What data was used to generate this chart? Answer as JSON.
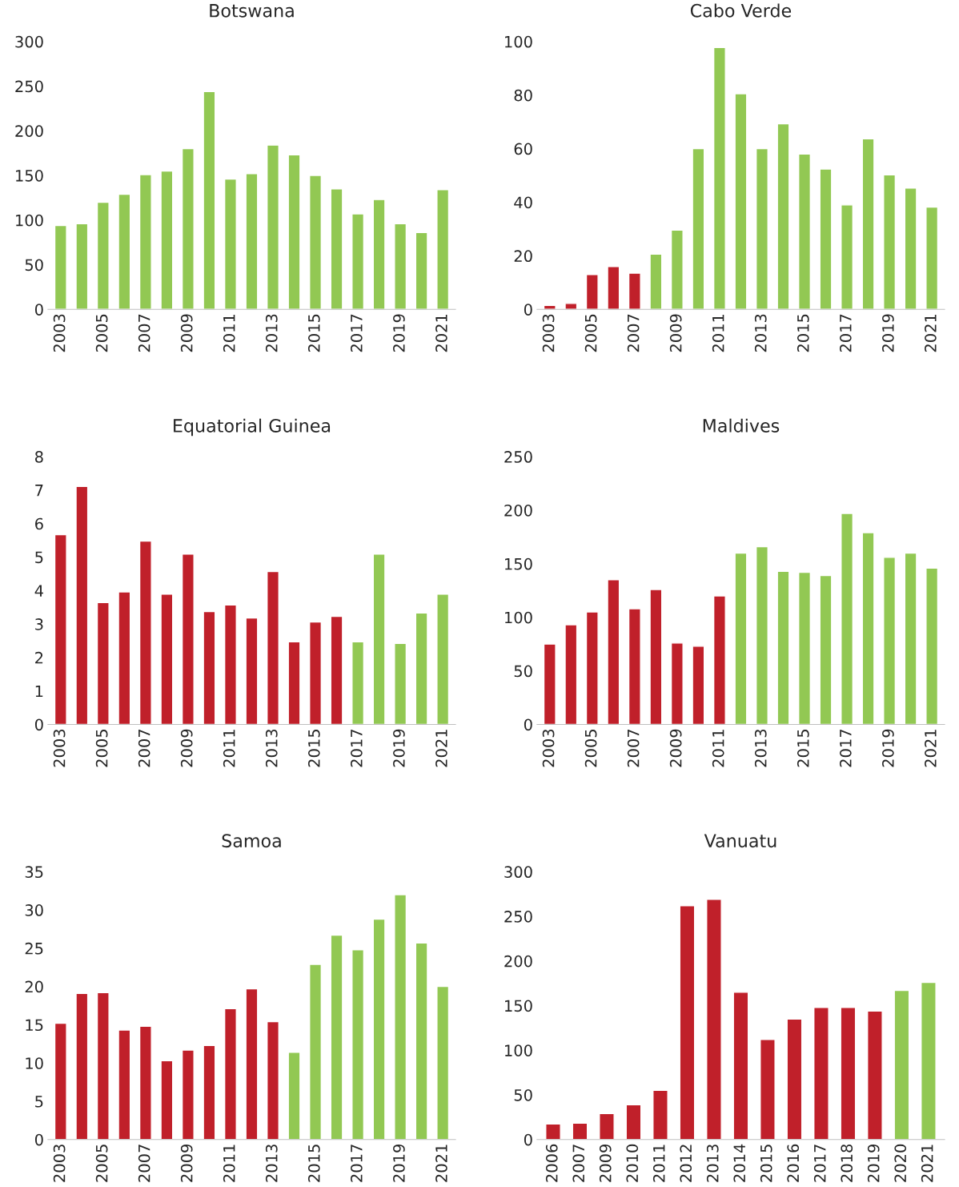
{
  "chart_data": [
    {
      "type": "bar",
      "title": "Botswana",
      "categories": [
        "2003",
        null,
        "2005",
        null,
        "2007",
        null,
        "2009",
        null,
        "2011",
        null,
        "2013",
        null,
        "2015",
        null,
        "2017",
        null,
        "2019",
        null,
        "2021"
      ],
      "values": [
        94,
        96,
        120,
        129,
        151,
        155,
        180,
        244,
        146,
        152,
        184,
        173,
        150,
        135,
        107,
        123,
        96,
        86,
        134
      ],
      "colors": [
        "#92c853",
        "#92c853",
        "#92c853",
        "#92c853",
        "#92c853",
        "#92c853",
        "#92c853",
        "#92c853",
        "#92c853",
        "#92c853",
        "#92c853",
        "#92c853",
        "#92c853",
        "#92c853",
        "#92c853",
        "#92c853",
        "#92c853",
        "#92c853",
        "#92c853"
      ],
      "ylim": [
        0,
        300
      ],
      "yticks": [
        0,
        50,
        100,
        150,
        200,
        250,
        300
      ],
      "grid": false,
      "legend": false
    },
    {
      "type": "bar",
      "title": "Cabo Verde",
      "categories": [
        "2003",
        null,
        "2005",
        null,
        "2007",
        null,
        "2009",
        null,
        "2011",
        null,
        "2013",
        null,
        "2015",
        null,
        "2017",
        null,
        "2019",
        null,
        "2021"
      ],
      "values": [
        1.5,
        2.2,
        13,
        16,
        13.5,
        20.6,
        29.6,
        60,
        97.8,
        80.5,
        60,
        69.3,
        58,
        52.4,
        39,
        63.7,
        50.2,
        45.3,
        38.2
      ],
      "colors": [
        "#c0202a",
        "#c0202a",
        "#c0202a",
        "#c0202a",
        "#c0202a",
        "#92c853",
        "#92c853",
        "#92c853",
        "#92c853",
        "#92c853",
        "#92c853",
        "#92c853",
        "#92c853",
        "#92c853",
        "#92c853",
        "#92c853",
        "#92c853",
        "#92c853",
        "#92c853"
      ],
      "ylim": [
        0,
        100
      ],
      "yticks": [
        0,
        20,
        40,
        60,
        80,
        100
      ],
      "grid": false,
      "legend": false
    },
    {
      "type": "bar",
      "title": "Equatorial Guinea",
      "categories": [
        "2003",
        null,
        "2005",
        null,
        "2007",
        null,
        "2009",
        null,
        "2011",
        null,
        "2013",
        null,
        "2015",
        null,
        "2017",
        null,
        "2019",
        null,
        "2021"
      ],
      "values": [
        5.67,
        7.11,
        3.64,
        3.96,
        5.48,
        3.89,
        5.09,
        3.37,
        3.57,
        3.18,
        4.57,
        2.47,
        3.06,
        3.23,
        2.47,
        5.09,
        2.42,
        3.33,
        3.89
      ],
      "colors": [
        "#c0202a",
        "#c0202a",
        "#c0202a",
        "#c0202a",
        "#c0202a",
        "#c0202a",
        "#c0202a",
        "#c0202a",
        "#c0202a",
        "#c0202a",
        "#c0202a",
        "#c0202a",
        "#c0202a",
        "#c0202a",
        "#92c853",
        "#92c853",
        "#92c853",
        "#92c853",
        "#92c853"
      ],
      "ylim": [
        0,
        8
      ],
      "yticks": [
        0,
        1,
        2,
        3,
        4,
        5,
        6,
        7,
        8
      ],
      "grid": false,
      "legend": false
    },
    {
      "type": "bar",
      "title": "Maldives",
      "categories": [
        "2003",
        null,
        "2005",
        null,
        "2007",
        null,
        "2009",
        null,
        "2011",
        null,
        "2013",
        null,
        "2015",
        null,
        "2017",
        null,
        "2019",
        null,
        "2021"
      ],
      "values": [
        75,
        93,
        105,
        135,
        108,
        126,
        76,
        73,
        120,
        160,
        166,
        143,
        142,
        139,
        197,
        179,
        156,
        160,
        146
      ],
      "colors": [
        "#c0202a",
        "#c0202a",
        "#c0202a",
        "#c0202a",
        "#c0202a",
        "#c0202a",
        "#c0202a",
        "#c0202a",
        "#c0202a",
        "#92c853",
        "#92c853",
        "#92c853",
        "#92c853",
        "#92c853",
        "#92c853",
        "#92c853",
        "#92c853",
        "#92c853",
        "#92c853"
      ],
      "ylim": [
        0,
        250
      ],
      "yticks": [
        0,
        50,
        100,
        150,
        200,
        250
      ],
      "grid": false,
      "legend": false
    },
    {
      "type": "bar",
      "title": "Samoa",
      "categories": [
        "2003",
        null,
        "2005",
        null,
        "2007",
        null,
        "2009",
        null,
        "2011",
        null,
        "2013",
        null,
        "2015",
        null,
        "2017",
        null,
        "2019",
        null,
        "2021"
      ],
      "values": [
        15.2,
        19.1,
        19.2,
        14.3,
        14.8,
        10.3,
        11.7,
        12.3,
        17.1,
        19.7,
        15.4,
        11.4,
        22.9,
        26.7,
        24.8,
        28.8,
        32,
        25.7,
        20
      ],
      "colors": [
        "#c0202a",
        "#c0202a",
        "#c0202a",
        "#c0202a",
        "#c0202a",
        "#c0202a",
        "#c0202a",
        "#c0202a",
        "#c0202a",
        "#c0202a",
        "#c0202a",
        "#92c853",
        "#92c853",
        "#92c853",
        "#92c853",
        "#92c853",
        "#92c853",
        "#92c853",
        "#92c853"
      ],
      "ylim": [
        0,
        35
      ],
      "yticks": [
        0,
        5,
        10,
        15,
        20,
        25,
        30,
        35
      ],
      "grid": false,
      "legend": false
    },
    {
      "type": "bar",
      "title": "Vanuatu",
      "categories": [
        "2006",
        "2007",
        "2009",
        "2010",
        "2011",
        "2012",
        "2013",
        "2014",
        "2015",
        "2016",
        "2017",
        "2018",
        "2019",
        "2020",
        "2021"
      ],
      "values": [
        17.5,
        18.4,
        29,
        39,
        55,
        262,
        269,
        165,
        112,
        135,
        148,
        148,
        144,
        167,
        176
      ],
      "colors": [
        "#c0202a",
        "#c0202a",
        "#c0202a",
        "#c0202a",
        "#c0202a",
        "#c0202a",
        "#c0202a",
        "#c0202a",
        "#c0202a",
        "#c0202a",
        "#c0202a",
        "#c0202a",
        "#c0202a",
        "#92c853",
        "#92c853"
      ],
      "ylim": [
        0,
        300
      ],
      "yticks": [
        0,
        50,
        100,
        150,
        200,
        250,
        300
      ],
      "grid": false,
      "legend": false
    }
  ]
}
